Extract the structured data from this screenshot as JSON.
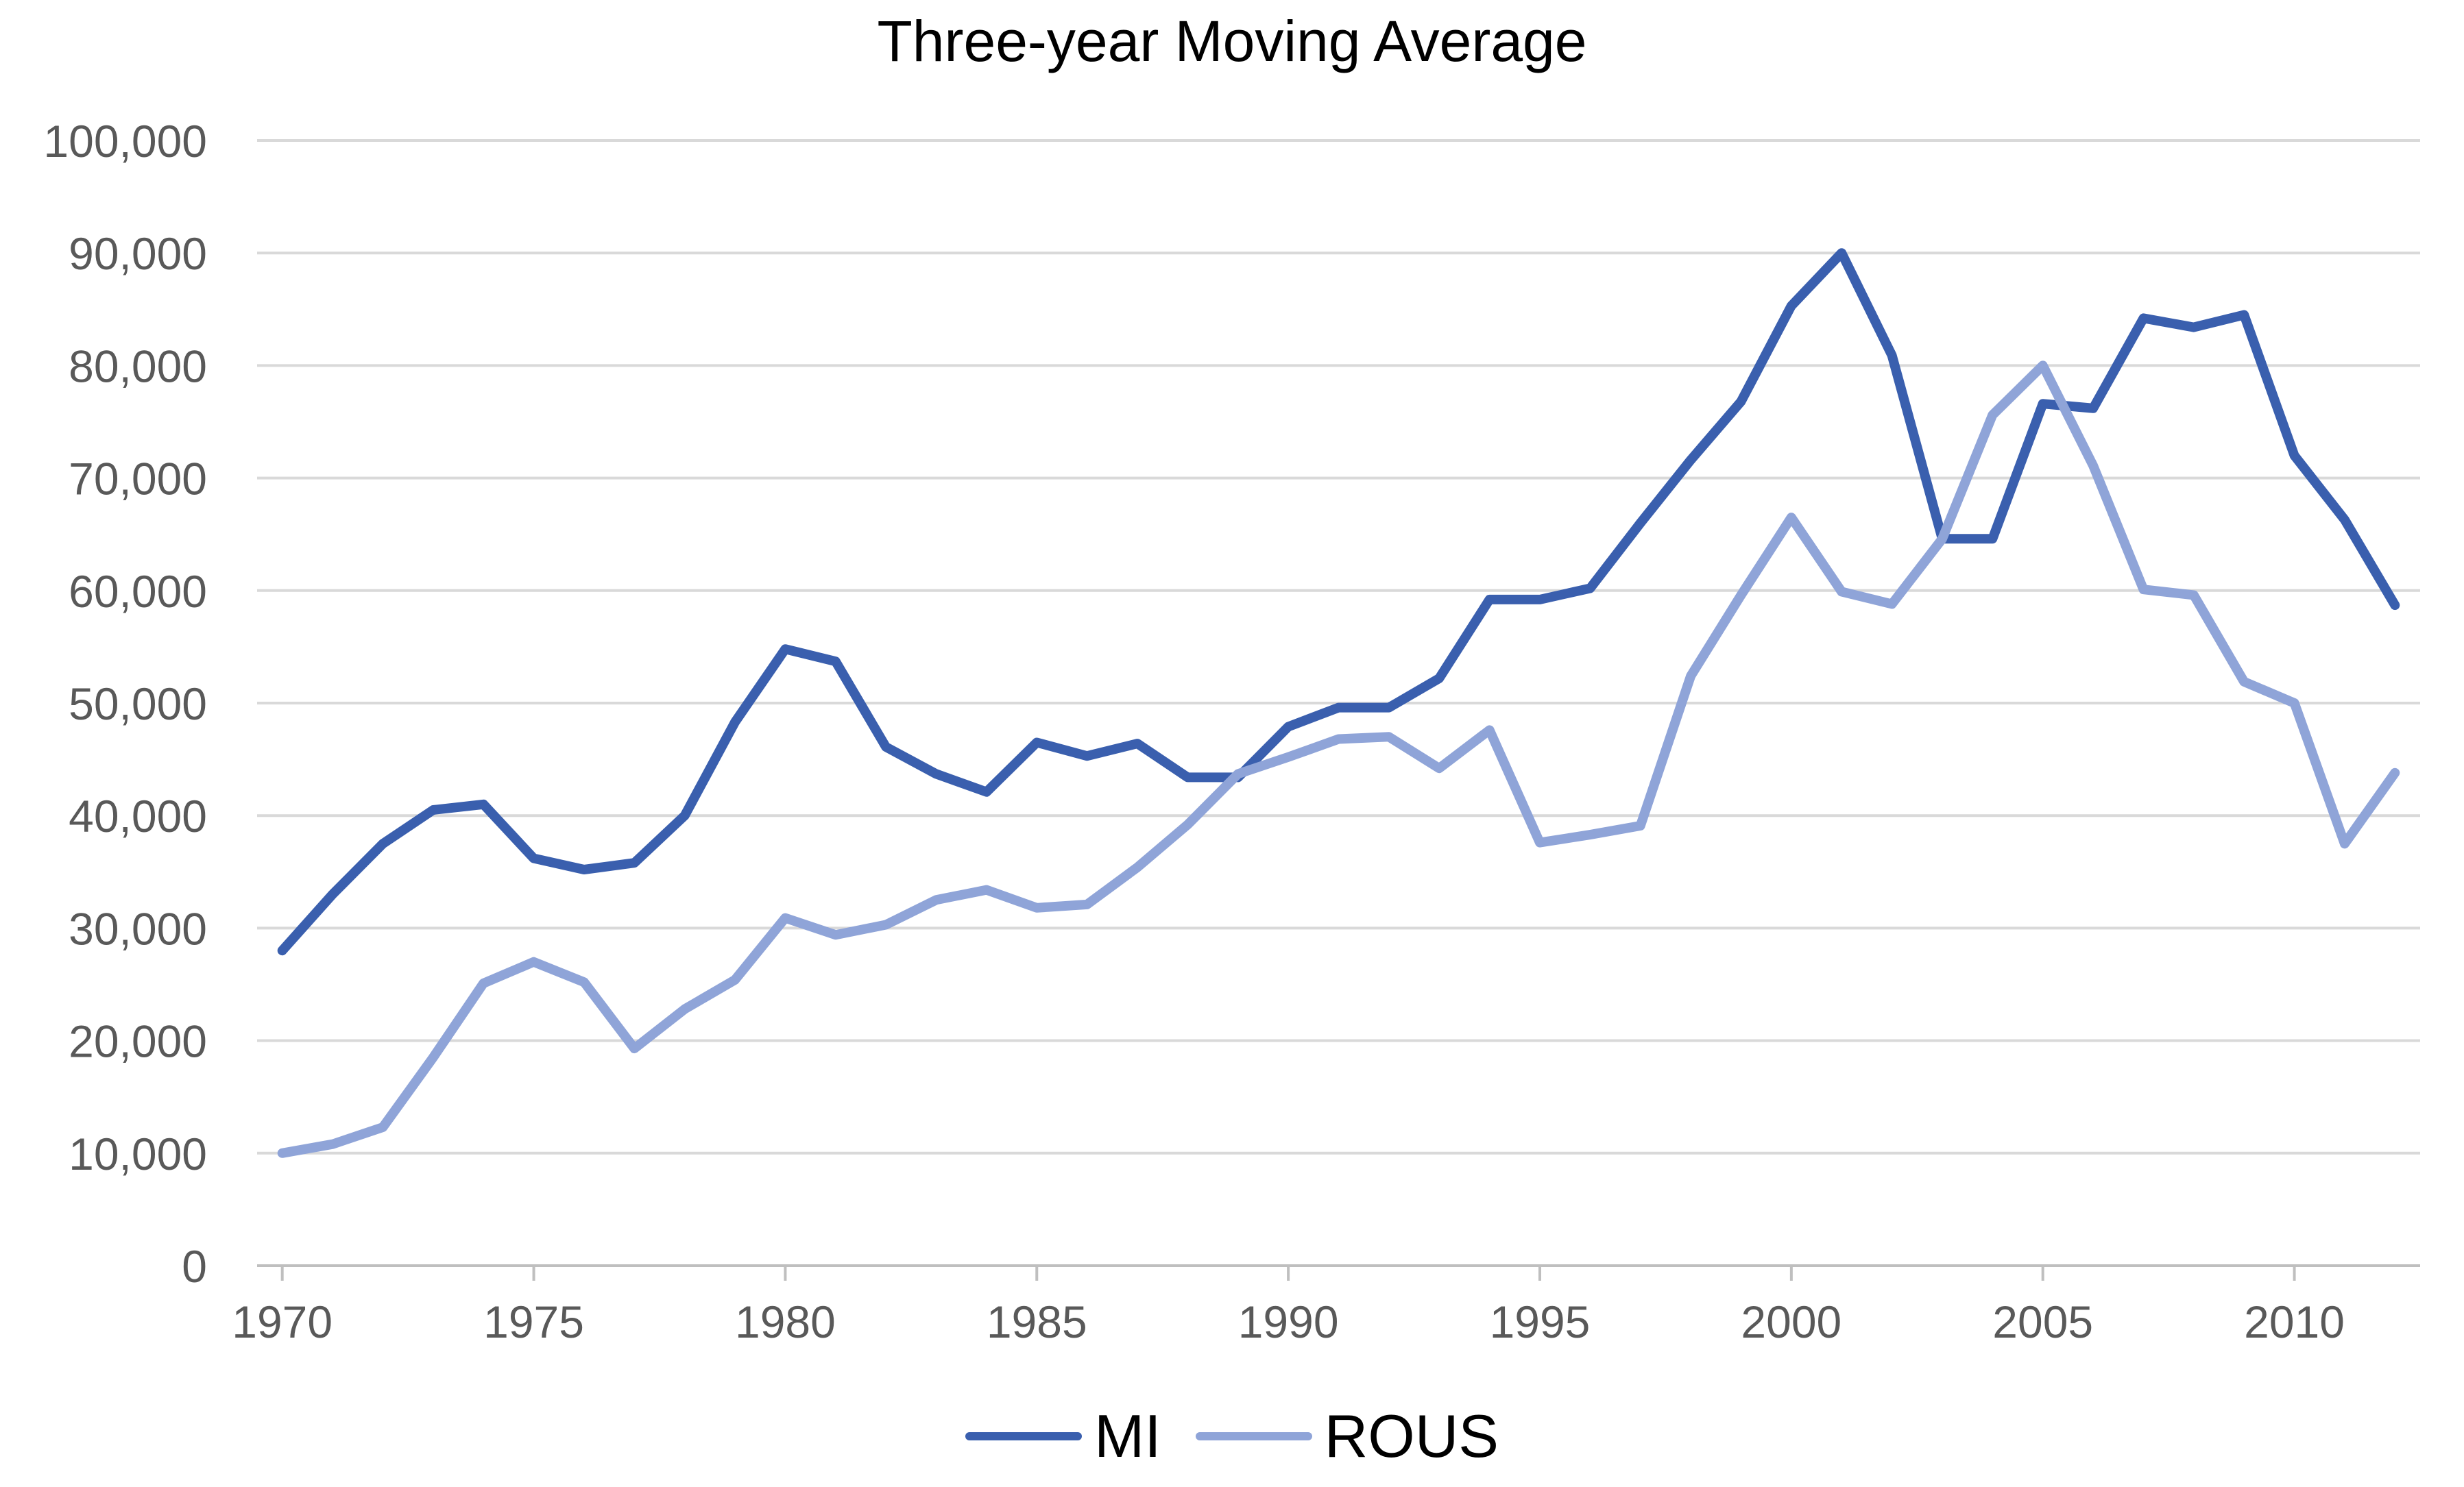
{
  "chart_data": {
    "type": "line",
    "title": "Three-year Moving Average",
    "xlabel": "",
    "ylabel": "",
    "xlim": [
      1969.5,
      2012.5
    ],
    "ylim": [
      0,
      100000
    ],
    "yticks": [
      0,
      10000,
      20000,
      30000,
      40000,
      50000,
      60000,
      70000,
      80000,
      90000,
      100000
    ],
    "ytick_labels": [
      "0",
      "10,000",
      "20,000",
      "30,000",
      "40,000",
      "50,000",
      "60,000",
      "70,000",
      "80,000",
      "90,000",
      "100,000"
    ],
    "xticks": [
      1970,
      1975,
      1980,
      1985,
      1990,
      1995,
      2000,
      2005,
      2010
    ],
    "xtick_labels": [
      "1970",
      "1975",
      "1980",
      "1985",
      "1990",
      "1995",
      "2000",
      "2005",
      "2010"
    ],
    "grid": "horizontal",
    "legend_position": "bottom",
    "x": [
      1970,
      1971,
      1972,
      1973,
      1974,
      1975,
      1976,
      1977,
      1978,
      1979,
      1980,
      1981,
      1982,
      1983,
      1984,
      1985,
      1986,
      1987,
      1988,
      1989,
      1990,
      1991,
      1992,
      1993,
      1994,
      1995,
      1996,
      1997,
      1998,
      1999,
      2000,
      2001,
      2002,
      2003,
      2004,
      2005,
      2006,
      2007,
      2008,
      2009,
      2010,
      2011,
      2012
    ],
    "series": [
      {
        "name": "MI",
        "color": "#3a5fae",
        "values": [
          28000,
          33000,
          37500,
          40500,
          41000,
          36200,
          35200,
          35800,
          40000,
          48300,
          54800,
          53700,
          46100,
          43700,
          42100,
          46500,
          45300,
          46400,
          43400,
          43400,
          47900,
          49600,
          49600,
          52200,
          59200,
          59200,
          60200,
          66000,
          71600,
          76800,
          85300,
          90000,
          80900,
          64600,
          64600,
          76600,
          76200,
          84200,
          83400,
          84500,
          72000,
          66300,
          58700
        ]
      },
      {
        "name": "ROUS",
        "color": "#8fa4d8",
        "values": [
          10000,
          10800,
          12300,
          18500,
          25100,
          27000,
          25200,
          19300,
          22800,
          25400,
          30900,
          29400,
          30300,
          32500,
          33400,
          31800,
          32100,
          35400,
          39200,
          43700,
          45200,
          46800,
          47000,
          44200,
          47600,
          37600,
          38300,
          39100,
          52400,
          59600,
          66500,
          59900,
          58800,
          64600,
          75600,
          80000,
          71100,
          60100,
          59600,
          51900,
          50000,
          37500,
          43800
        ]
      }
    ]
  }
}
